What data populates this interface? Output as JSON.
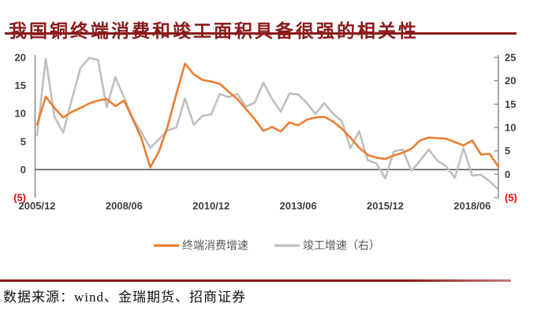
{
  "title": "我国铜终端消费和竣工面积具备很强的相关性",
  "source_note": "数据来源：wind、金瑞期货、招商证券",
  "colors": {
    "title_red": "#8B1A1A",
    "rule_red": "#8B1A1A",
    "rule_fade": "#C87C7C",
    "accent_orange": "#ED7D31",
    "line_gray": "#BFBFBF",
    "zero_line": "#595959",
    "axis_line": "#808080",
    "axis_text": "#3F3F3F",
    "legend_text": "#595959",
    "negative_red": "#FF0000"
  },
  "chart_data": {
    "type": "line",
    "title": "",
    "xlabel": "",
    "ylabel_left": "",
    "ylabel_right": "",
    "grid": false,
    "legend_position": "bottom",
    "x": [
      "2005/12",
      "2006/03",
      "2006/06",
      "2006/09",
      "2006/12",
      "2007/03",
      "2007/06",
      "2007/09",
      "2007/12",
      "2008/03",
      "2008/06",
      "2008/09",
      "2008/12",
      "2009/03",
      "2009/06",
      "2009/09",
      "2009/12",
      "2010/03",
      "2010/06",
      "2010/09",
      "2010/12",
      "2011/03",
      "2011/06",
      "2011/09",
      "2011/12",
      "2012/03",
      "2012/06",
      "2012/09",
      "2012/12",
      "2013/03",
      "2013/06",
      "2013/09",
      "2013/12",
      "2014/03",
      "2014/06",
      "2014/09",
      "2014/12",
      "2015/03",
      "2015/06",
      "2015/09",
      "2015/12",
      "2016/03",
      "2016/06",
      "2016/09",
      "2016/12",
      "2017/03",
      "2017/06",
      "2017/09",
      "2017/12",
      "2018/03",
      "2018/06",
      "2018/09",
      "2018/12",
      "2019/03"
    ],
    "x_tick_labels": [
      "2005/12",
      "2008/06",
      "2010/12",
      "2013/06",
      "2015/12",
      "2018/06"
    ],
    "x_tick_positions": [
      0,
      10,
      20,
      30,
      40,
      50
    ],
    "left_axis": {
      "min": -5,
      "max": 20,
      "ticks": [
        20,
        15,
        10,
        5,
        0,
        -5
      ],
      "tick_labels": [
        "20",
        "15",
        "10",
        "5",
        "0",
        "(5)"
      ]
    },
    "right_axis": {
      "min": -5,
      "max": 25,
      "ticks": [
        25,
        20,
        15,
        10,
        5,
        0,
        -5
      ],
      "tick_labels": [
        "25",
        "20",
        "15",
        "10",
        "5",
        "0",
        "(5)"
      ]
    },
    "series": [
      {
        "name": "终端消费增速",
        "axis": "left",
        "color": "#ED7D31",
        "values": [
          8.0,
          13.0,
          11.0,
          9.3,
          10.3,
          11.0,
          11.8,
          12.3,
          12.6,
          11.3,
          12.3,
          9.0,
          5.5,
          0.4,
          3.2,
          7.7,
          13.5,
          18.9,
          17.0,
          16.0,
          15.7,
          15.3,
          13.9,
          12.6,
          10.8,
          9.0,
          6.9,
          7.6,
          6.8,
          8.4,
          7.9,
          8.9,
          9.3,
          9.4,
          8.6,
          7.3,
          5.7,
          3.9,
          2.6,
          2.1,
          1.9,
          2.5,
          3.0,
          3.7,
          5.2,
          5.7,
          5.6,
          5.5,
          4.9,
          4.3,
          5.2,
          2.7,
          2.8,
          0.5
        ]
      },
      {
        "name": "竣工增速（右）",
        "axis": "right",
        "color": "#BFBFBF",
        "values": [
          8.3,
          24.7,
          12.3,
          8.9,
          16.1,
          22.8,
          24.9,
          24.5,
          14.3,
          20.8,
          16.4,
          12.0,
          8.9,
          5.6,
          7.5,
          9.4,
          10.0,
          16.2,
          10.6,
          12.5,
          12.8,
          17.2,
          16.5,
          17.2,
          14.5,
          15.3,
          19.6,
          16.1,
          13.4,
          17.3,
          17.1,
          15.2,
          12.9,
          15.2,
          13.0,
          11.4,
          5.6,
          9.2,
          3.0,
          2.3,
          -0.9,
          4.9,
          5.3,
          0.7,
          2.9,
          5.3,
          2.9,
          1.7,
          -0.8,
          5.6,
          -0.3,
          -0.1,
          -1.5,
          -3.3
        ]
      }
    ]
  }
}
